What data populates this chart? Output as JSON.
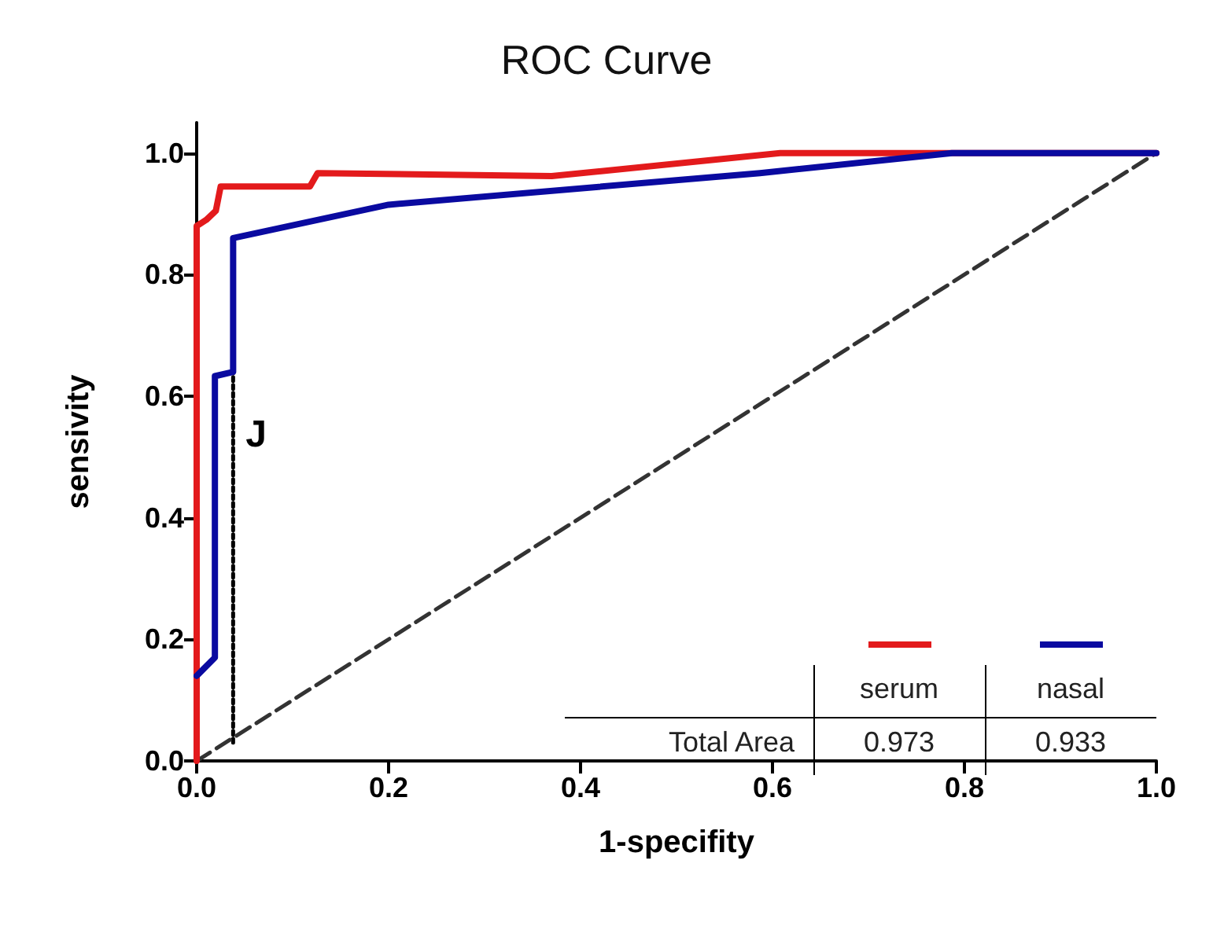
{
  "chart_data": {
    "type": "line",
    "title": "ROC Curve",
    "xlabel": "1-specifity",
    "ylabel": "sensivity",
    "xlim": [
      0,
      1
    ],
    "ylim": [
      0,
      1.05
    ],
    "xticks": [
      {
        "value": 0,
        "label": "0.0"
      },
      {
        "value": 0.2,
        "label": "0.2"
      },
      {
        "value": 0.4,
        "label": "0.4"
      },
      {
        "value": 0.6,
        "label": "0.6"
      },
      {
        "value": 0.8,
        "label": "0.8"
      },
      {
        "value": 1,
        "label": "1.0"
      }
    ],
    "yticks": [
      {
        "value": 0,
        "label": "0.0"
      },
      {
        "value": 0.2,
        "label": "0.2"
      },
      {
        "value": 0.4,
        "label": "0.4"
      },
      {
        "value": 0.6,
        "label": "0.6"
      },
      {
        "value": 0.8,
        "label": "0.8"
      },
      {
        "value": 1,
        "label": "1.0"
      }
    ],
    "grid": false,
    "marker": "none",
    "legend": "bottom right",
    "series": [
      {
        "name": "serum",
        "color": "#e31a1c",
        "x": [
          0,
          0,
          0.01,
          0.02,
          0.025,
          0.118,
          0.126,
          0.37,
          0.608,
          1
        ],
        "values": [
          0,
          0.88,
          0.89,
          0.905,
          0.945,
          0.945,
          0.967,
          0.962,
          1,
          1
        ]
      },
      {
        "name": "nasal",
        "color": "#0a0aa0",
        "x": [
          0,
          0.019,
          0.019,
          0.038,
          0.038,
          0.2,
          0.587,
          0.787,
          1
        ],
        "values": [
          0.14,
          0.17,
          0.633,
          0.64,
          0.86,
          0.915,
          0.967,
          1,
          1
        ]
      },
      {
        "color": "#000000",
        "line_style": "dotted",
        "x": [
          0.038,
          0.038
        ],
        "values": [
          0.03,
          0.64
        ]
      },
      {
        "color": "#333333",
        "line_style": "dashed",
        "x": [
          0,
          1
        ],
        "values": [
          0,
          1
        ]
      }
    ],
    "annotations": [
      "J",
      "Total Area",
      "0.973",
      "0.933"
    ]
  }
}
